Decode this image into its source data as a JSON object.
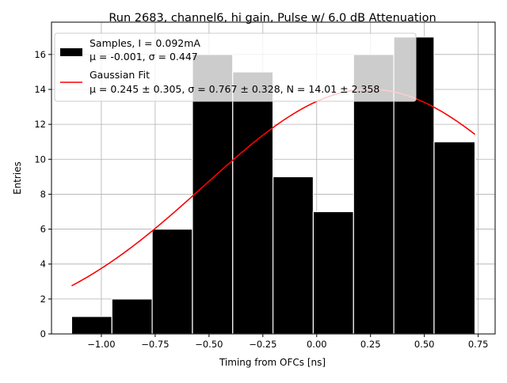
{
  "chart_data": {
    "type": "bar",
    "title": "Run 2683, channel6, hi gain, Pulse w/ 6.0 dB Attenuation",
    "xlabel": "Timing from OFCs [ns]",
    "ylabel": "Entries",
    "xlim": [
      -1.2315,
      0.8285
    ],
    "ylim": [
      0,
      17.85
    ],
    "grid": true,
    "xticks": [
      -1.0,
      -0.75,
      -0.5,
      -0.25,
      0.0,
      0.25,
      0.5,
      0.75
    ],
    "xtick_labels": [
      "−1.00",
      "−0.75",
      "−0.50",
      "−0.25",
      "0.00",
      "0.25",
      "0.50",
      "0.75"
    ],
    "yticks": [
      0,
      2,
      4,
      6,
      8,
      10,
      12,
      14,
      16
    ],
    "ytick_labels": [
      "0",
      "2",
      "4",
      "6",
      "8",
      "10",
      "12",
      "14",
      "16"
    ],
    "bin_edges": [
      -1.138,
      -0.951,
      -0.764,
      -0.577,
      -0.39,
      -0.203,
      -0.016,
      0.171,
      0.358,
      0.545,
      0.735
    ],
    "values": [
      1,
      2,
      6,
      16,
      15,
      9,
      7,
      16,
      17,
      11
    ],
    "fit": {
      "mu": 0.245,
      "sigma": 0.767,
      "N": 14.01,
      "x_range": [
        -1.138,
        0.735
      ]
    },
    "legend": {
      "location": "top-left",
      "entries": [
        {
          "line1": "Samples, I = 0.092mA",
          "line2": "μ = -0.001, σ = 0.447"
        },
        {
          "line1": "Gaussian Fit",
          "line2": "μ = 0.245 ± 0.305, σ = 0.767 ± 0.328, N = 14.01 ± 2.358"
        }
      ]
    },
    "colors": {
      "bars": "#000000",
      "bar_edge": "#ffffff",
      "fit": "#ff0000",
      "grid": "#b0b0b0"
    }
  }
}
